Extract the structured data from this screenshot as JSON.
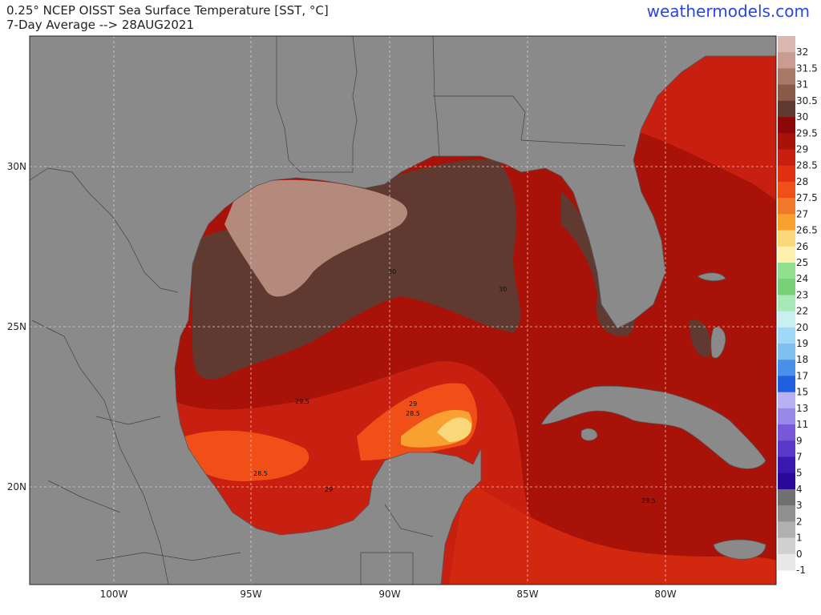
{
  "header": {
    "title_line1": "0.25° NCEP OISST Sea Surface Temperature [SST, °C]",
    "title_line2": "7-Day Average --> 28AUG2021",
    "brand": "weathermodels.com"
  },
  "axes": {
    "lon_ticks": [
      "100W",
      "95W",
      "90W",
      "85W",
      "80W"
    ],
    "lat_ticks": [
      "30N",
      "25N",
      "20N"
    ]
  },
  "colorbar": {
    "labels": [
      "32",
      "31.5",
      "31",
      "30.5",
      "30",
      "29.5",
      "29",
      "28.5",
      "28",
      "27.5",
      "27",
      "26.5",
      "26",
      "25",
      "24",
      "23",
      "22",
      "20",
      "19",
      "18",
      "17",
      "15",
      "13",
      "11",
      "9",
      "7",
      "5",
      "4",
      "3",
      "2",
      "1",
      "0",
      "-1"
    ],
    "colors": [
      "#d8b8b0",
      "#c89c90",
      "#a87868",
      "#8a5a48",
      "#603a30",
      "#8c0808",
      "#a81208",
      "#c82010",
      "#e03010",
      "#f05018",
      "#f07828",
      "#f8a030",
      "#f8d878",
      "#fff0b0",
      "#90e090",
      "#78d078",
      "#a8e8b8",
      "#c8f0f0",
      "#a0d8f8",
      "#80c0f0",
      "#4890e8",
      "#2060e0",
      "#b8b0f0",
      "#9888e8",
      "#7858d8",
      "#5838c8",
      "#3818b0",
      "#2a0898",
      "#707070",
      "#909090",
      "#b0b0b0",
      "#d0d0d0",
      "#e8e8e8"
    ]
  },
  "contours": {
    "c30a": "30",
    "c30b": "30",
    "c29a": "29",
    "c295a": "29.5",
    "c285a": "28.5",
    "c285b": "28.5",
    "c29b": "29",
    "c295b": "29.5"
  },
  "colors": {
    "land": "#8a8a8a",
    "ocean": "#a81208",
    "hot": "#603a30",
    "hottest": "#b48a7c",
    "warm": "#e03010",
    "warmer": "#f05018",
    "coolish": "#f8a030",
    "brand": "#2a46e0"
  }
}
